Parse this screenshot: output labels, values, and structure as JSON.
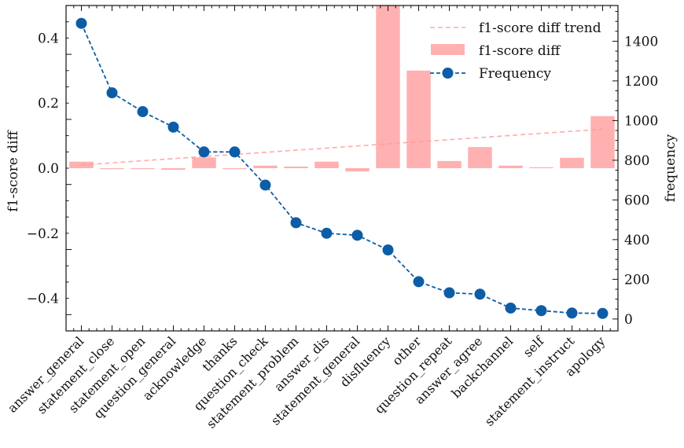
{
  "chart_data": {
    "type": "bar+line",
    "categories": [
      "answer_general",
      "statement_close",
      "statement_open",
      "question_general",
      "acknowledge",
      "thanks",
      "question_check",
      "statement_problem",
      "answer_dis",
      "statement_general",
      "disfluency",
      "other",
      "question_repeat",
      "answer_agree",
      "backchannel",
      "self",
      "statement_instruct",
      "apology"
    ],
    "left_axis": {
      "label": "f1-score diff",
      "ylim": [
        -0.5,
        0.5
      ],
      "ticks": [
        0.4,
        0.2,
        0.0,
        -0.2,
        -0.4
      ],
      "tick_labels": [
        "0.4",
        "0.2",
        "0.0",
        "−0.2",
        "−0.4"
      ]
    },
    "right_axis": {
      "label": "frequency",
      "ylim": [
        -60,
        1580
      ],
      "ticks": [
        0,
        200,
        400,
        600,
        800,
        1000,
        1200,
        1400
      ],
      "tick_labels": [
        "0",
        "200",
        "400",
        "600",
        "800",
        "1000",
        "1200",
        "1400"
      ]
    },
    "series": [
      {
        "name": "f1-score diff",
        "type": "bar",
        "axis": "left",
        "color": "#ffb0b0",
        "values": [
          0.02,
          -0.002,
          -0.003,
          -0.005,
          0.033,
          -0.002,
          0.008,
          0.005,
          0.02,
          -0.01,
          0.5,
          0.3,
          0.022,
          0.065,
          0.008,
          0.0,
          0.032,
          0.16
        ]
      },
      {
        "name": "Frequency",
        "type": "line",
        "axis": "right",
        "color": "#0c5da5",
        "values": [
          1490,
          1140,
          1045,
          967,
          842,
          842,
          675,
          485,
          432,
          422,
          348,
          188,
          132,
          125,
          55,
          42,
          30,
          28
        ]
      },
      {
        "name": "f1-score diff trend",
        "type": "trend",
        "axis": "left",
        "color": "#ff9c9c",
        "start": 0.01,
        "end": 0.12
      }
    ],
    "legend": {
      "position": "top-right",
      "entries": [
        "f1-score diff trend",
        "f1-score diff",
        "Frequency"
      ]
    }
  }
}
